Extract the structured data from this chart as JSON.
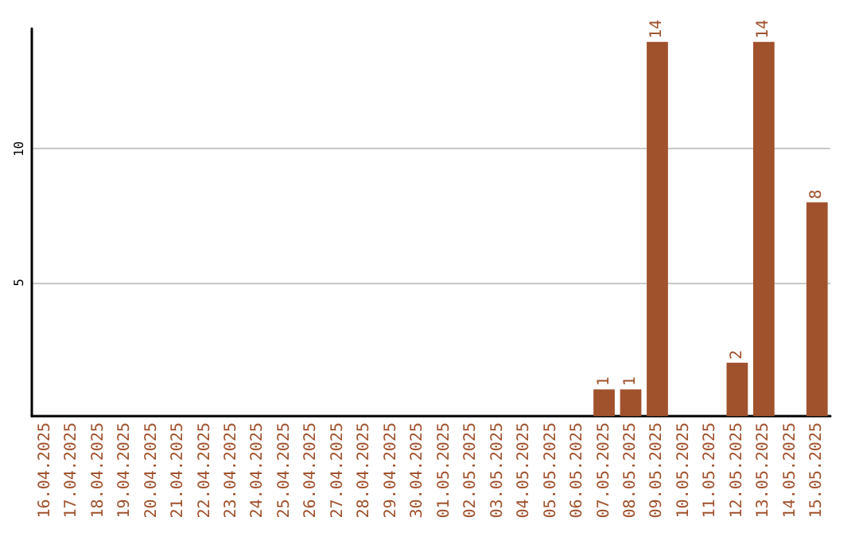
{
  "chart_data": {
    "type": "bar",
    "categories": [
      "16.04.2025",
      "17.04.2025",
      "18.04.2025",
      "19.04.2025",
      "20.04.2025",
      "21.04.2025",
      "22.04.2025",
      "23.04.2025",
      "24.04.2025",
      "25.04.2025",
      "26.04.2025",
      "27.04.2025",
      "28.04.2025",
      "29.04.2025",
      "30.04.2025",
      "01.05.2025",
      "02.05.2025",
      "03.05.2025",
      "04.05.2025",
      "05.05.2025",
      "06.05.2025",
      "07.05.2025",
      "08.05.2025",
      "09.05.2025",
      "10.05.2025",
      "11.05.2025",
      "12.05.2025",
      "13.05.2025",
      "14.05.2025",
      "15.05.2025"
    ],
    "values": [
      0,
      0,
      0,
      0,
      0,
      0,
      0,
      0,
      0,
      0,
      0,
      0,
      0,
      0,
      0,
      0,
      0,
      0,
      0,
      0,
      0,
      1,
      1,
      14,
      0,
      0,
      2,
      14,
      0,
      8
    ],
    "value_labels": [
      null,
      null,
      null,
      null,
      null,
      null,
      null,
      null,
      null,
      null,
      null,
      null,
      null,
      null,
      null,
      null,
      null,
      null,
      null,
      null,
      null,
      "1",
      "1",
      "14",
      null,
      null,
      "2",
      "14",
      null,
      "8"
    ],
    "color": "#a0522d",
    "ylim": [
      0,
      14.5
    ],
    "yticks": [
      5,
      10
    ],
    "grid": "y"
  }
}
